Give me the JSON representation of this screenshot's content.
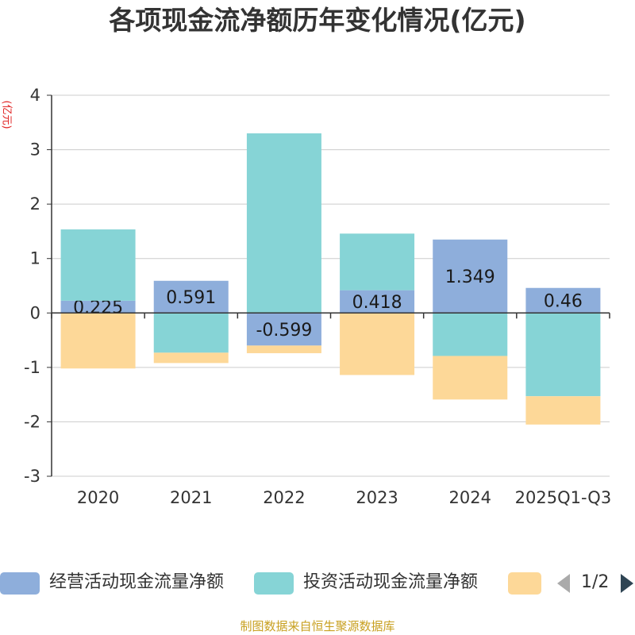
{
  "chart_data": {
    "type": "bar",
    "stacked": true,
    "title": "各项现金流净额历年变化情况(亿元)",
    "ylabel": "(亿元)",
    "xlabel": "",
    "ylim": [
      -3,
      4
    ],
    "yticks": [
      -3,
      -2,
      -1,
      0,
      1,
      2,
      3,
      4
    ],
    "categories": [
      "2020",
      "2021",
      "2022",
      "2023",
      "2024",
      "2025Q1-Q3"
    ],
    "series": [
      {
        "name": "经营活动现金流量净额",
        "color": "#8eaedb",
        "values": [
          0.225,
          0.591,
          -0.599,
          0.418,
          1.349,
          0.46
        ],
        "labels": [
          "0.225",
          "0.591",
          "-0.599",
          "0.418",
          "1.349",
          "0.46"
        ]
      },
      {
        "name": "投资活动现金流量净额",
        "color": "#86d4d6",
        "values": [
          1.31,
          -0.73,
          3.3,
          1.04,
          -0.79,
          -1.53
        ]
      },
      {
        "name": "",
        "color": "#fdd898",
        "values": [
          -1.02,
          -0.19,
          -0.14,
          -1.14,
          -0.8,
          -0.52
        ]
      }
    ],
    "grid": true
  },
  "legend": {
    "items": [
      "经营活动现金流量净额",
      "投资活动现金流量净额",
      ""
    ],
    "page": "1/2"
  },
  "source": "制图数据来自恒生聚源数据库"
}
